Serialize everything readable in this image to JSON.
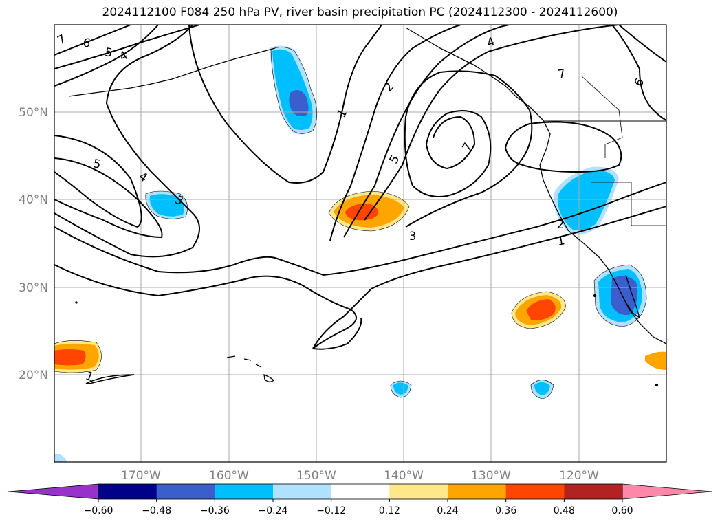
{
  "title": "2024112100 F084 250 hPa PV, river basin precipitation PC (2024112300 - 2024112600)",
  "lat_labels": [
    "50°N",
    "40°N",
    "30°N",
    "20°N"
  ],
  "lon_labels": [
    "170°W",
    "160°W",
    "150°W",
    "140°W",
    "130°W",
    "120°W"
  ],
  "colorbar": {
    "ticks": [
      "−0.60",
      "−0.48",
      "−0.36",
      "−0.24",
      "−0.12",
      "0.12",
      "0.24",
      "0.36",
      "0.48",
      "0.60"
    ],
    "colors": [
      "#9932cc",
      "#00008b",
      "#3a5fcd",
      "#00bfff",
      "#b0e2ff",
      "#ffffff",
      "#ffe88a",
      "#ffa500",
      "#ff4500",
      "#b22222",
      "#ff88aa"
    ]
  },
  "contour_labels": [
    "7",
    "6",
    "5",
    "4",
    "5",
    "4",
    "3",
    "1",
    "2",
    "4",
    "7",
    "5",
    "7",
    "6",
    "3",
    "2",
    "1",
    "1"
  ],
  "colors": {
    "pos_low": "#ffa500",
    "pos_mid": "#ff4500",
    "pos_high": "#e34020",
    "neg_low": "#00bfff",
    "neg_mid": "#3a5fcd",
    "neg_light": "#b0e2ff",
    "grid": "#aaaaaa",
    "label_gray": "#808080"
  }
}
